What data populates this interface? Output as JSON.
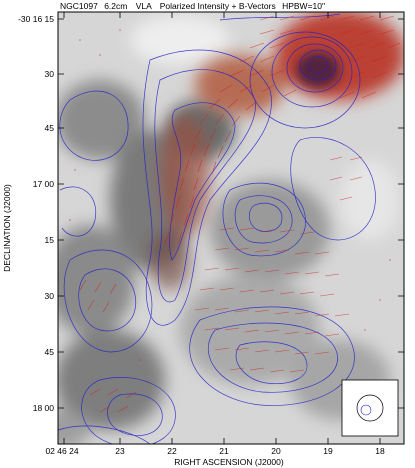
{
  "header": {
    "object": "NGC1097",
    "wavelength": "6.2cm",
    "telescope": "VLA",
    "description": "Polarized Intensity + B-Vectors",
    "beam": "HPBW=10\""
  },
  "axes": {
    "ylabel": "DECLINATION (J2000)",
    "xlabel": "RIGHT ASCENSION (J2000)",
    "yticks": [
      "-30 16 15",
      "30",
      "45",
      "17 00",
      "15",
      "30",
      "45",
      "18 00"
    ],
    "xticks": [
      "02 46 24",
      "23",
      "22",
      "21",
      "20",
      "19",
      "18"
    ]
  },
  "colors": {
    "frame": "#000000",
    "contour": "#2020c8",
    "vector": "#d02020",
    "emission_gray": "#6e6e6e",
    "polarized_red": "#c0392b"
  }
}
